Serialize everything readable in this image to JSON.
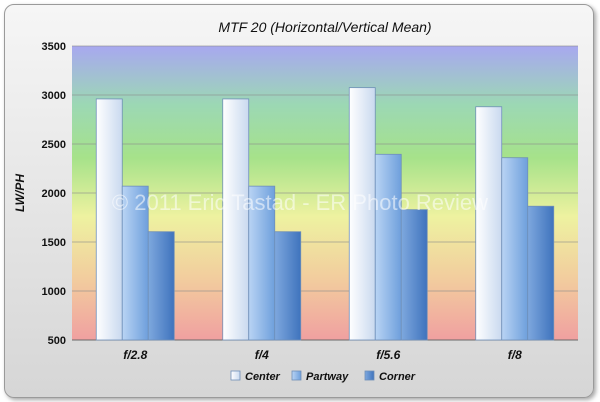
{
  "chart_data": {
    "type": "bar",
    "title": "MTF 20 (Horizontal/Vertical Mean)",
    "xlabel": "",
    "ylabel": "LW/PH",
    "categories": [
      "f/2.8",
      "f/4",
      "f/5.6",
      "f/8"
    ],
    "series": [
      {
        "name": "Center",
        "values": [
          2960,
          2960,
          3075,
          2880
        ],
        "color": "#dde8f6"
      },
      {
        "name": "Partway",
        "values": [
          2070,
          2070,
          2395,
          2360
        ],
        "color": "#8fb8e8"
      },
      {
        "name": "Corner",
        "values": [
          1605,
          1605,
          1830,
          1865
        ],
        "color": "#5b8ed0"
      }
    ],
    "ylim": [
      500,
      3500
    ],
    "yticks": [
      500,
      1000,
      1500,
      2000,
      2500,
      3000,
      3500
    ],
    "grid": true,
    "legend": "bottom",
    "background_bands": [
      "#a8a8f0",
      "#9cd8b4",
      "#a6e28a",
      "#eef2a0",
      "#f2cb9e",
      "#f0a0a0"
    ]
  },
  "watermark": "© 2011 Eric Tastad - ER Photo Review"
}
